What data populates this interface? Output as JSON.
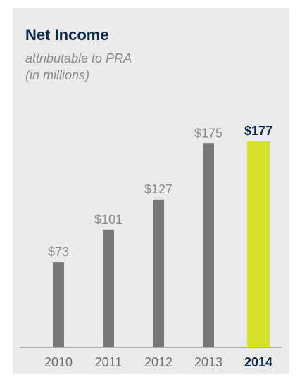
{
  "chart_data": {
    "type": "bar",
    "title": "Net Income",
    "subtitle_lines": [
      "attributable to PRA",
      "(in millions)"
    ],
    "categories": [
      "2010",
      "2011",
      "2012",
      "2013",
      "2014"
    ],
    "values": [
      73,
      101,
      127,
      175,
      177
    ],
    "value_labels": [
      "$73",
      "$101",
      "$127",
      "$175",
      "$177"
    ],
    "highlight_index": 4,
    "xlabel": "",
    "ylabel": "",
    "ylim": [
      0,
      177
    ],
    "grid": false,
    "colors": {
      "bar": "#77777a",
      "highlight_bar": "#d7e22a",
      "label": "#8a8a8a",
      "highlight_label": "#0d2a4a",
      "axis": "#7a7a7a"
    }
  }
}
